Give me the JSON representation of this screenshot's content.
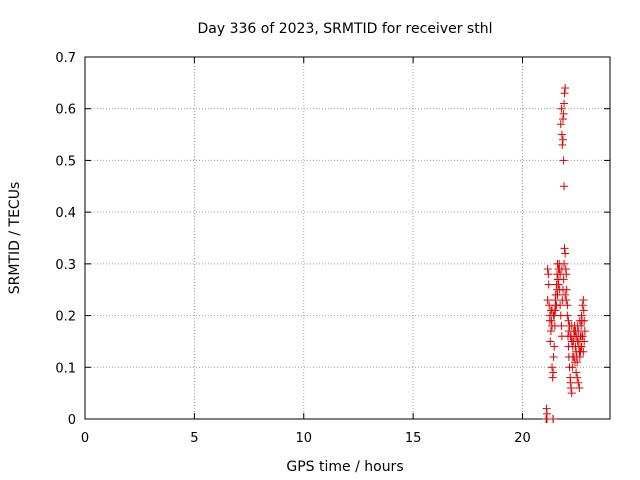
{
  "chart_data": {
    "type": "scatter",
    "title": "Day 336 of 2023, SRMTID for receiver sthl",
    "xlabel": "GPS time / hours",
    "ylabel": "SRMTID / TECUs",
    "xlim": [
      0,
      24
    ],
    "ylim": [
      0,
      0.7
    ],
    "xticks": [
      "0",
      "5",
      "10",
      "15",
      "20"
    ],
    "yticks": [
      "0",
      "0.1",
      "0.2",
      "0.3",
      "0.4",
      "0.5",
      "0.6",
      "0.7"
    ],
    "grid": true,
    "marker": "+",
    "color": "#dd0000",
    "series": [
      {
        "x": [
          21.08,
          21.1,
          21.12,
          21.15,
          21.18,
          21.2,
          21.22,
          21.25,
          21.27,
          21.3,
          21.32,
          21.35,
          21.38,
          21.4,
          21.42,
          21.45,
          21.48,
          21.5,
          21.52,
          21.55,
          21.58,
          21.6,
          21.62,
          21.65,
          21.68,
          21.7,
          21.72,
          21.75,
          21.78,
          21.8,
          21.82,
          21.85,
          21.88,
          21.9,
          21.92,
          21.95,
          21.98,
          22.0,
          22.02,
          22.05,
          22.08,
          22.1,
          22.12,
          22.15,
          22.18,
          22.2,
          22.22,
          22.25,
          22.28,
          22.3,
          22.32,
          22.35,
          22.38,
          22.4,
          22.42,
          22.45,
          22.48,
          22.5,
          22.52,
          22.55,
          22.58,
          22.6,
          22.62,
          22.65,
          22.68,
          22.7,
          22.72,
          22.75,
          22.78,
          22.8,
          22.82,
          22.85,
          21.15,
          21.35,
          21.4,
          21.45,
          21.55,
          21.6,
          21.65,
          21.72,
          21.8,
          21.85,
          21.88,
          21.9,
          21.92,
          21.95,
          21.75,
          21.78,
          21.8,
          21.82,
          21.85,
          21.88,
          21.9,
          21.95,
          22.0,
          22.05,
          22.1,
          22.15,
          22.2,
          22.25,
          22.3,
          22.35,
          22.4,
          22.45,
          22.5,
          22.55,
          22.6,
          22.65,
          22.7,
          22.75,
          21.25,
          21.3,
          21.5,
          21.58,
          21.62,
          21.68,
          22.25,
          22.35,
          22.48,
          22.58,
          22.68,
          22.78,
          21.35,
          21.42,
          21.48,
          21.52,
          22.12,
          22.22,
          22.32,
          22.42,
          22.52,
          22.62,
          22.72,
          22.82,
          21.1,
          21.12,
          21.4
        ],
        "y": [
          0.0,
          0.02,
          0.0,
          0.29,
          0.28,
          0.26,
          0.22,
          0.2,
          0.15,
          0.17,
          0.19,
          0.1,
          0.08,
          0.09,
          0.12,
          0.14,
          0.18,
          0.21,
          0.24,
          0.26,
          0.28,
          0.3,
          0.27,
          0.29,
          0.3,
          0.25,
          0.22,
          0.2,
          0.18,
          0.16,
          0.23,
          0.25,
          0.27,
          0.3,
          0.33,
          0.32,
          0.29,
          0.28,
          0.25,
          0.2,
          0.16,
          0.14,
          0.12,
          0.1,
          0.08,
          0.07,
          0.06,
          0.05,
          0.1,
          0.12,
          0.15,
          0.17,
          0.18,
          0.16,
          0.14,
          0.13,
          0.12,
          0.11,
          0.15,
          0.17,
          0.14,
          0.13,
          0.12,
          0.16,
          0.18,
          0.2,
          0.19,
          0.22,
          0.23,
          0.21,
          0.19,
          0.17,
          0.23,
          0.21,
          0.0,
          0.2,
          0.22,
          0.24,
          0.26,
          0.28,
          0.29,
          0.58,
          0.59,
          0.61,
          0.63,
          0.64,
          0.57,
          0.6,
          0.55,
          0.53,
          0.54,
          0.5,
          0.45,
          0.24,
          0.23,
          0.22,
          0.19,
          0.18,
          0.16,
          0.15,
          0.14,
          0.12,
          0.11,
          0.09,
          0.08,
          0.07,
          0.06,
          0.13,
          0.14,
          0.16,
          0.19,
          0.21,
          0.23,
          0.25,
          0.27,
          0.29,
          0.18,
          0.17,
          0.16,
          0.15,
          0.14,
          0.13,
          0.18,
          0.2,
          0.21,
          0.22,
          0.17,
          0.16,
          0.15,
          0.17,
          0.18,
          0.19,
          0.16,
          0.15,
          0.0,
          0.01,
          0.0
        ]
      }
    ]
  }
}
